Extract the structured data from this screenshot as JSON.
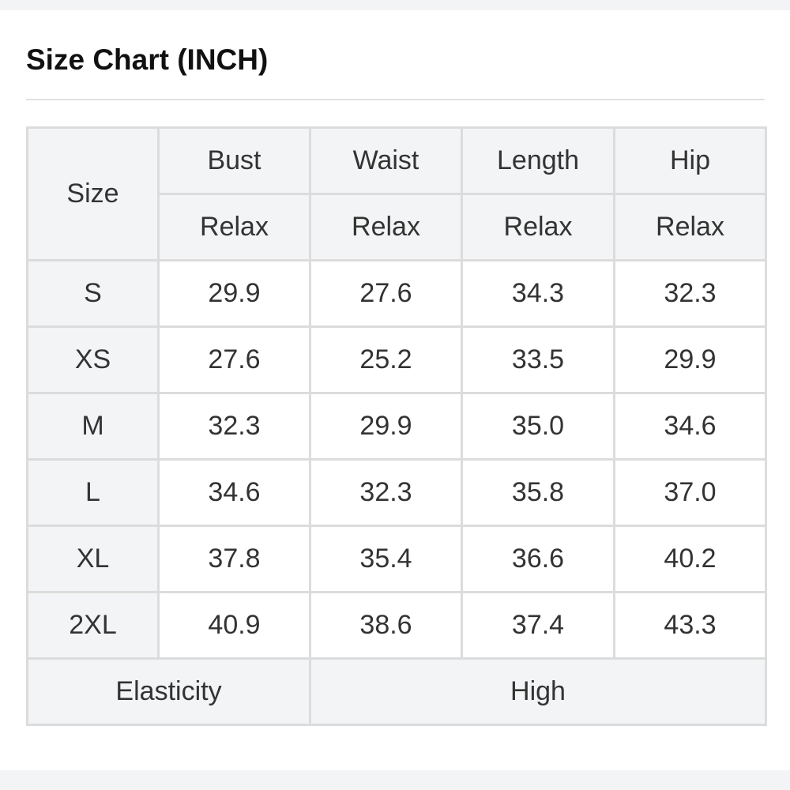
{
  "title": "Size Chart (INCH)",
  "header": {
    "size_label": "Size",
    "columns": [
      "Bust",
      "Waist",
      "Length",
      "Hip"
    ],
    "sub_label": "Relax"
  },
  "rows": [
    {
      "size": "S",
      "values": [
        "29.9",
        "27.6",
        "34.3",
        "32.3"
      ]
    },
    {
      "size": "XS",
      "values": [
        "27.6",
        "25.2",
        "33.5",
        "29.9"
      ]
    },
    {
      "size": "M",
      "values": [
        "32.3",
        "29.9",
        "35.0",
        "34.6"
      ]
    },
    {
      "size": "L",
      "values": [
        "34.6",
        "32.3",
        "35.8",
        "37.0"
      ]
    },
    {
      "size": "XL",
      "values": [
        "37.8",
        "35.4",
        "36.6",
        "40.2"
      ]
    },
    {
      "size": "2XL",
      "values": [
        "40.9",
        "38.6",
        "37.4",
        "43.3"
      ]
    }
  ],
  "footer": {
    "label": "Elasticity",
    "value": "High"
  }
}
